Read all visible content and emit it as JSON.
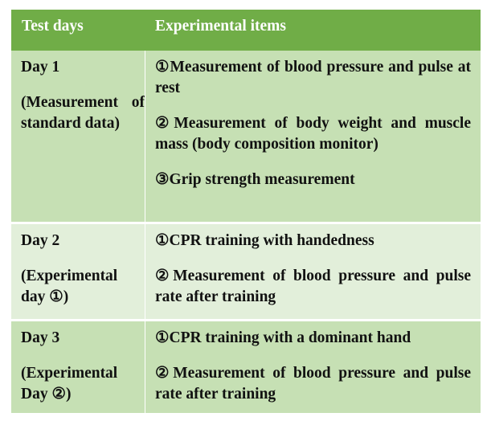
{
  "colors": {
    "header_bg": "#70ad47",
    "row_dark": "#c6e0b4",
    "row_light": "#e2efda",
    "header_text": "#ffffff"
  },
  "table": {
    "headers": [
      "Test days",
      "Experimental items"
    ],
    "rows": [
      {
        "day": "Day 1",
        "day_note": "(Measurement of standard data)",
        "items": [
          "①Measurement of blood pressure and pulse at rest",
          "②Measurement of body weight and muscle mass (body composition monitor)",
          "③Grip strength measurement"
        ]
      },
      {
        "day": "Day 2",
        "day_note": "(Experimental day ①)",
        "items": [
          "①CPR training with handedness",
          "②Measurement of blood pressure and pulse rate after training"
        ]
      },
      {
        "day": "Day 3",
        "day_note": "(Experimental Day ②)",
        "items": [
          "①CPR training with a dominant hand",
          "②Measurement of blood pressure and pulse rate after training"
        ]
      }
    ]
  }
}
